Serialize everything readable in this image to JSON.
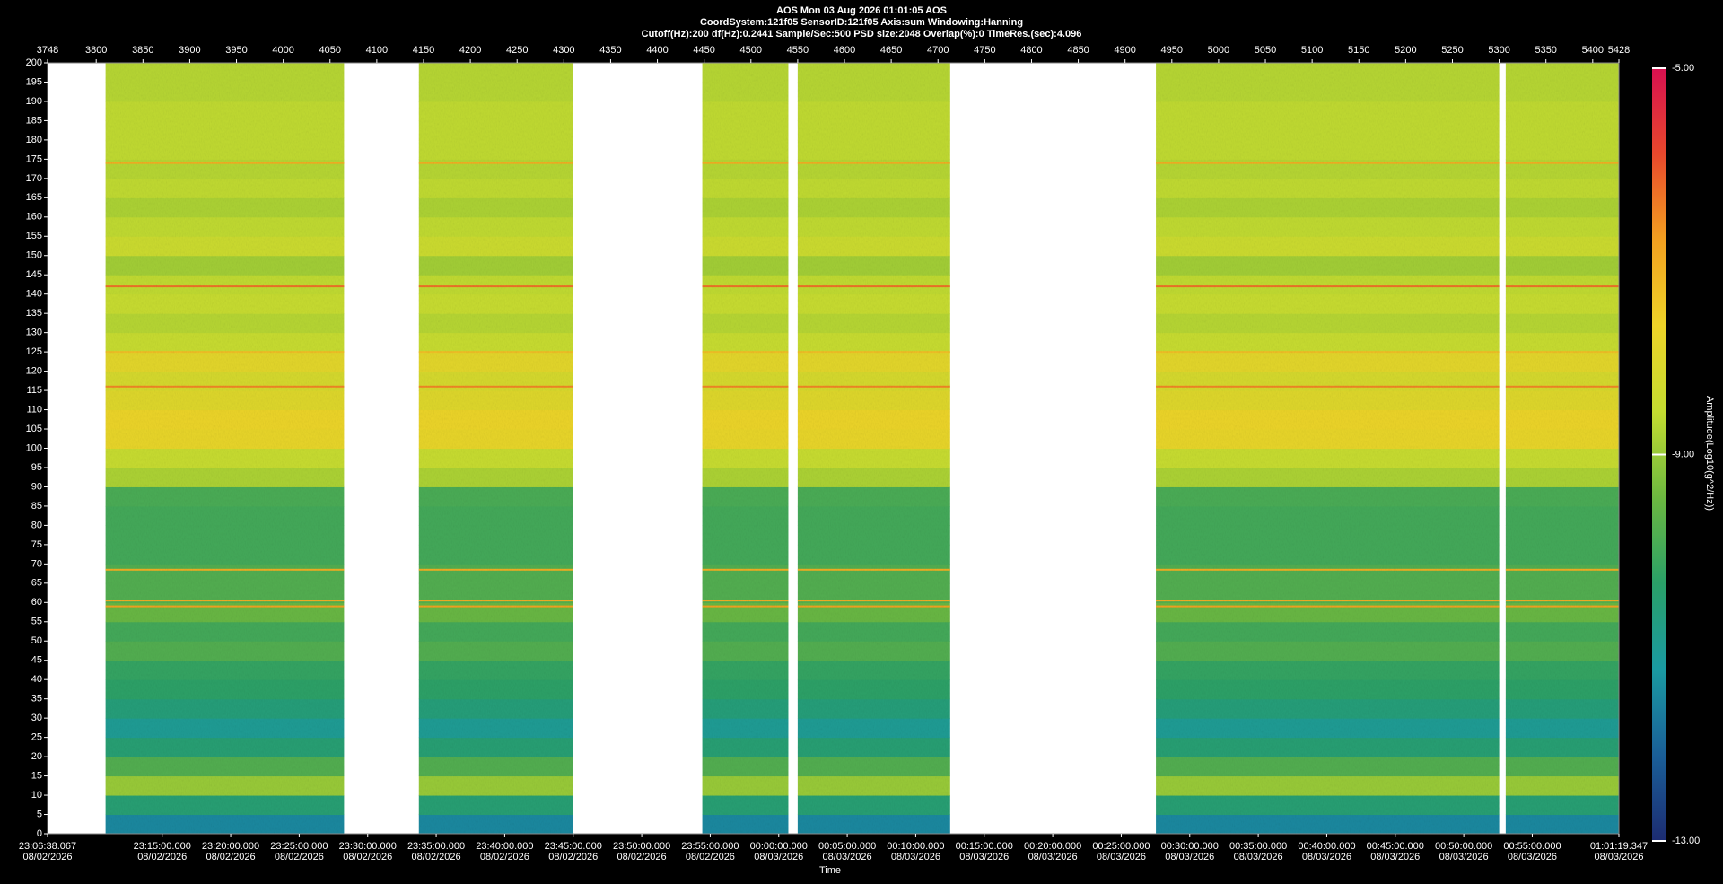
{
  "chart_data": {
    "type": "spectrogram",
    "title": "AOS  Mon 03 Aug 2026 01:01:05  AOS",
    "subtitle": "CoordSystem:121f05   SensorID:121f05   Axis:sum   Windowing:Hanning",
    "info": "Cutoff(Hz):200     df(Hz):0.2441     Sample/Sec:500     PSD size:2048     Overlap(%):0     TimeRes.(sec):4.096",
    "x_label": "Time",
    "colorbar_label": "Amplitude(Log10(g^2/Hz))",
    "xlim": [
      3748,
      5428
    ],
    "xticks": [
      3748,
      3800,
      3850,
      3900,
      3950,
      4000,
      4050,
      4100,
      4150,
      4200,
      4250,
      4300,
      4350,
      4400,
      4450,
      4500,
      4550,
      4600,
      4650,
      4700,
      4750,
      4800,
      4850,
      4900,
      4950,
      5000,
      5050,
      5100,
      5150,
      5200,
      5250,
      5300,
      5350,
      5400,
      5428
    ],
    "time_ticks": [
      {
        "value": 3748,
        "label": "23:06:38.067",
        "date": "08/02/2026"
      },
      {
        "value": 3870.54,
        "label": "23:15:00.000",
        "date": "08/02/2026"
      },
      {
        "value": 3943.78,
        "label": "23:20:00.000",
        "date": "08/02/2026"
      },
      {
        "value": 4017.03,
        "label": "23:25:00.000",
        "date": "08/02/2026"
      },
      {
        "value": 4090.27,
        "label": "23:30:00.000",
        "date": "08/02/2026"
      },
      {
        "value": 4163.51,
        "label": "23:35:00.000",
        "date": "08/02/2026"
      },
      {
        "value": 4236.75,
        "label": "23:40:00.000",
        "date": "08/02/2026"
      },
      {
        "value": 4309.99,
        "label": "23:45:00.000",
        "date": "08/02/2026"
      },
      {
        "value": 4383.24,
        "label": "23:50:00.000",
        "date": "08/02/2026"
      },
      {
        "value": 4456.48,
        "label": "23:55:00.000",
        "date": "08/02/2026"
      },
      {
        "value": 4529.72,
        "label": "00:00:00.000",
        "date": "08/03/2026"
      },
      {
        "value": 4602.96,
        "label": "00:05:00.000",
        "date": "08/03/2026"
      },
      {
        "value": 4676.2,
        "label": "00:10:00.000",
        "date": "08/03/2026"
      },
      {
        "value": 4749.44,
        "label": "00:15:00.000",
        "date": "08/03/2026"
      },
      {
        "value": 4822.69,
        "label": "00:20:00.000",
        "date": "08/03/2026"
      },
      {
        "value": 4895.93,
        "label": "00:25:00.000",
        "date": "08/03/2026"
      },
      {
        "value": 4969.17,
        "label": "00:30:00.000",
        "date": "08/03/2026"
      },
      {
        "value": 5042.41,
        "label": "00:35:00.000",
        "date": "08/03/2026"
      },
      {
        "value": 5115.65,
        "label": "00:40:00.000",
        "date": "08/03/2026"
      },
      {
        "value": 5188.89,
        "label": "00:45:00.000",
        "date": "08/03/2026"
      },
      {
        "value": 5262.14,
        "label": "00:50:00.000",
        "date": "08/03/2026"
      },
      {
        "value": 5335.38,
        "label": "00:55:00.000",
        "date": "08/03/2026"
      },
      {
        "value": 5428,
        "label": "01:01:19.347",
        "date": "08/03/2026"
      }
    ],
    "ylim": [
      0,
      200
    ],
    "yticks": [
      0,
      5,
      10,
      15,
      20,
      25,
      30,
      35,
      40,
      45,
      50,
      55,
      60,
      65,
      70,
      75,
      80,
      85,
      90,
      95,
      100,
      105,
      110,
      115,
      120,
      125,
      130,
      135,
      140,
      145,
      150,
      155,
      160,
      165,
      170,
      175,
      180,
      185,
      190,
      195,
      200
    ],
    "segments": [
      [
        3810,
        4065
      ],
      [
        4145,
        4310
      ],
      [
        4448,
        4540
      ],
      [
        4550,
        4713
      ],
      [
        4933,
        5300
      ],
      [
        5307,
        5428
      ]
    ],
    "bins": [
      0,
      5,
      10,
      15,
      20,
      25,
      30,
      35,
      40,
      45,
      50,
      55,
      60,
      65,
      70,
      75,
      80,
      85,
      90,
      95,
      100,
      105,
      110,
      115,
      120,
      125,
      130,
      135,
      140,
      145,
      150,
      155,
      160,
      165,
      170,
      175,
      180,
      185,
      190,
      195,
      200
    ],
    "levels": [
      -11.5,
      -10.5,
      -9.0,
      -9.8,
      -10.5,
      -11.0,
      -10.6,
      -10.3,
      -10.2,
      -9.8,
      -10.0,
      -9.5,
      -9.8,
      -9.8,
      -10.0,
      -10.0,
      -10.0,
      -9.9,
      -8.8,
      -8.5,
      -7.8,
      -7.7,
      -8.0,
      -8.2,
      -7.9,
      -8.5,
      -8.7,
      -8.5,
      -8.6,
      -8.9,
      -8.4,
      -8.6,
      -8.8,
      -8.6,
      -8.7,
      -8.6,
      -8.6,
      -8.6,
      -8.7,
      -8.7
    ],
    "tones": [
      {
        "f": 174,
        "amp": -7
      },
      {
        "f": 142,
        "amp": -6.3
      },
      {
        "f": 125,
        "amp": -7.3
      },
      {
        "f": 116,
        "amp": -6.5
      },
      {
        "f": 68.5,
        "amp": -7
      },
      {
        "f": 60.5,
        "amp": -7
      },
      {
        "f": 59,
        "amp": -6.8
      }
    ],
    "zlim": [
      -13,
      -5
    ],
    "zticks": [
      {
        "value": -13,
        "label": "-13.00"
      },
      {
        "value": -9,
        "label": "-9.00"
      },
      {
        "value": -5,
        "label": "-5.00"
      }
    ],
    "colormap": [
      "#1c2c72",
      "#1a5f98",
      "#1a9aa2",
      "#2aa068",
      "#6cb840",
      "#c4dc30",
      "#eed428",
      "#f3a020",
      "#e8482c",
      "#d81050"
    ]
  }
}
